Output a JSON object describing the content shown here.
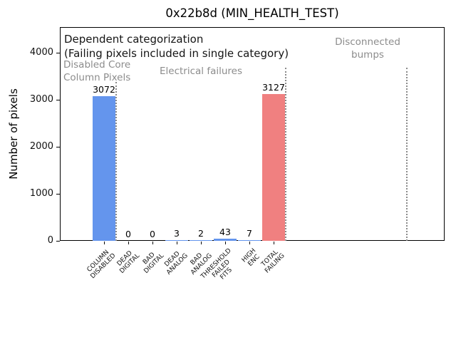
{
  "figure": {
    "title": "0x22b8d (MIN_HEALTH_TEST)",
    "ylabel": "Number of pixels"
  },
  "annotations": {
    "dependent_line1": "Dependent categorization",
    "dependent_line2": "(Failing pixels included in single category)",
    "disabled_core": "Disabled Core\nColumn Pixels",
    "electrical": "Electrical failures",
    "disconnected": "Disconnected\nbumps"
  },
  "colors": {
    "bar_blue": "#6495ed",
    "bar_red": "#f08080",
    "annotation_gray": "#8c8c8c",
    "guide_line_gray": "#8a8a8a",
    "axis_black": "#000000"
  },
  "chart_data": {
    "type": "bar",
    "title": "0x22b8d (MIN_HEALTH_TEST)",
    "xlabel": "",
    "ylabel": "Number of pixels",
    "categories": [
      "COLUMN\nDISABLED",
      "DEAD\nDIGITAL",
      "BAD\nDIGITAL",
      "DEAD\nANALOG",
      "BAD\nANALOG",
      "THRESHOLD\nFAILED\nFITS",
      "HIGH\nENC",
      "TOTAL\nFAILING"
    ],
    "values": [
      3072,
      0,
      0,
      3,
      2,
      43,
      7,
      3127
    ],
    "value_labels": [
      "3072",
      "0",
      "0",
      "3",
      "2",
      "43",
      "7",
      "3127"
    ],
    "bar_colors": [
      "#6495ed",
      "#6495ed",
      "#6495ed",
      "#6495ed",
      "#6495ed",
      "#6495ed",
      "#6495ed",
      "#f08080"
    ],
    "yticks": [
      0,
      1000,
      2000,
      3000,
      4000
    ],
    "ylim": [
      0,
      4545
    ],
    "xlim": [
      -1.85,
      14.05
    ],
    "grid": false,
    "legend": null,
    "guide_lines_x": [
      0.5,
      7.5,
      12.5
    ],
    "region_annotations": [
      {
        "text": "Disabled Core\nColumn Pixels",
        "anchor_x": 0,
        "align": "left",
        "color": "#8c8c8c"
      },
      {
        "text": "Electrical failures",
        "anchor_x": 4,
        "align": "center",
        "color": "#8c8c8c"
      },
      {
        "text": "Disconnected\nbumps",
        "anchor_x": 10.9,
        "align": "center",
        "color": "#8c8c8c"
      }
    ]
  }
}
